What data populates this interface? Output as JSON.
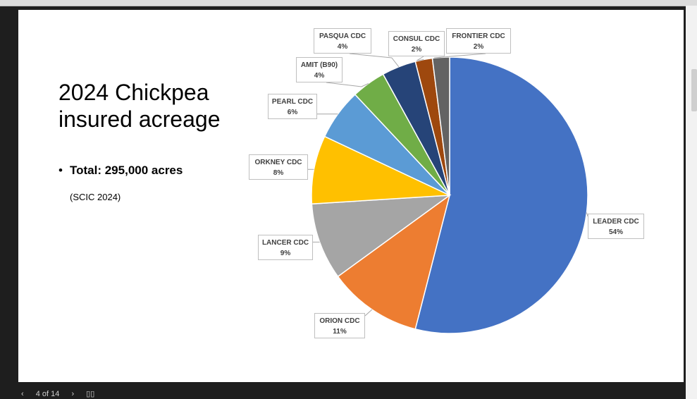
{
  "slide": {
    "title": "2024 Chickpea insured acreage",
    "bullet": "Total: 295,000 acres",
    "source": "(SCIC 2024)"
  },
  "chart_data": {
    "type": "pie",
    "labels": [
      "LEADER CDC",
      "ORION CDC",
      "LANCER CDC",
      "ORKNEY CDC",
      "PEARL CDC",
      "AMIT (B90)",
      "PASQUA CDC",
      "CONSUL CDC",
      "FRONTIER CDC"
    ],
    "values": [
      54,
      11,
      9,
      8,
      6,
      4,
      4,
      2,
      2
    ],
    "value_labels": [
      "54%",
      "11%",
      "9%",
      "8%",
      "6%",
      "4%",
      "4%",
      "2%",
      "2%"
    ],
    "colors": [
      "#4472C4",
      "#ED7D31",
      "#A5A5A5",
      "#FFC000",
      "#5B9BD5",
      "#70AD47",
      "#264478",
      "#9E480E",
      "#636363"
    ],
    "start": "12 o'clock",
    "direction": "clockwise",
    "data_labels": "outside with callout boxes"
  },
  "footer": {
    "prev_icon": "chevron-left-icon",
    "page_text": "4 of 14",
    "next_icon": "chevron-right-icon",
    "grid_icon": "grid-icon"
  }
}
